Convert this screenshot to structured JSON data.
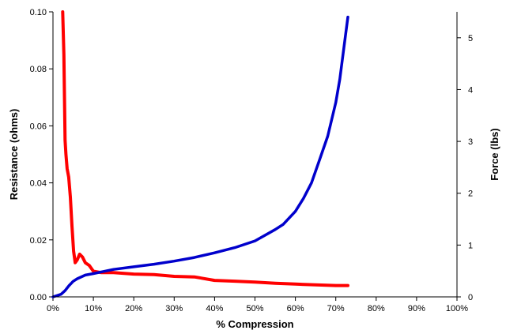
{
  "chart_data": {
    "type": "line",
    "title": "",
    "xlabel": "% Compression",
    "ylabel_left": "Resistance (ohms)",
    "ylabel_right": "Force (lbs)",
    "xlim": [
      0,
      100
    ],
    "ylim_left": [
      0,
      0.1
    ],
    "ylim_right": [
      0,
      5.5
    ],
    "grid": false,
    "legend": "none",
    "x_ticks": [
      "0%",
      "10%",
      "20%",
      "30%",
      "40%",
      "50%",
      "60%",
      "70%",
      "80%",
      "90%",
      "100%"
    ],
    "y_left_ticks": [
      "0.00",
      "0.02",
      "0.04",
      "0.06",
      "0.08",
      "0.10"
    ],
    "y_right_ticks": [
      "0",
      "1",
      "2",
      "3",
      "4",
      "5"
    ],
    "series": [
      {
        "axis": "left",
        "color": "#ff0000",
        "x": [
          2.4,
          2.7,
          3.0,
          3.2,
          3.5,
          3.9,
          4.3,
          4.7,
          5.1,
          5.5,
          6.0,
          6.6,
          7.3,
          8.0,
          9.0,
          10.0,
          12.0,
          15.0,
          20.0,
          25.0,
          30.0,
          35.0,
          40.0,
          45.0,
          50.0,
          55.0,
          60.0,
          65.0,
          70.0,
          73.0
        ],
        "y": [
          0.1,
          0.085,
          0.055,
          0.05,
          0.045,
          0.042,
          0.035,
          0.025,
          0.016,
          0.012,
          0.013,
          0.015,
          0.014,
          0.012,
          0.011,
          0.009,
          0.0085,
          0.0085,
          0.008,
          0.0078,
          0.0072,
          0.007,
          0.0058,
          0.0055,
          0.0052,
          0.0048,
          0.0045,
          0.0042,
          0.004,
          0.004
        ]
      },
      {
        "axis": "right",
        "color": "#0000cc",
        "x": [
          0,
          2,
          3,
          4,
          5,
          6,
          8,
          10,
          15,
          20,
          25,
          30,
          35,
          40,
          45,
          50,
          55,
          57,
          60,
          62,
          64,
          66,
          68,
          70,
          71,
          72,
          73
        ],
        "y": [
          0,
          0.05,
          0.12,
          0.22,
          0.3,
          0.35,
          0.42,
          0.45,
          0.53,
          0.58,
          0.63,
          0.69,
          0.76,
          0.85,
          0.95,
          1.08,
          1.3,
          1.4,
          1.65,
          1.9,
          2.2,
          2.65,
          3.1,
          3.75,
          4.2,
          4.8,
          5.4
        ]
      }
    ]
  }
}
